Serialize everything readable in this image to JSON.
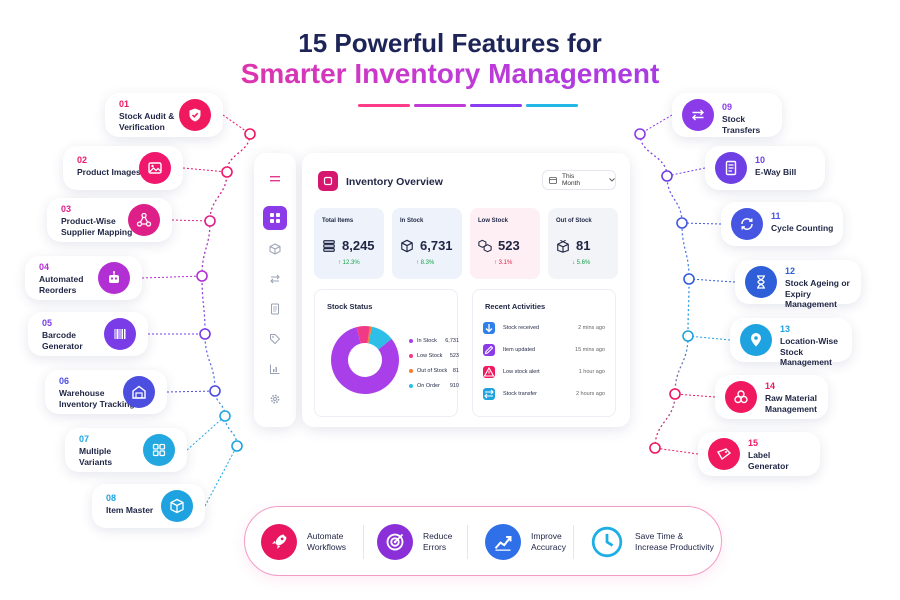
{
  "title": {
    "line1": "15 Powerful Features for",
    "line2": "Smarter Inventory Management",
    "underline_colors": [
      "#ff3c87",
      "#c13bd6",
      "#8a3cf0",
      "#22b7e6"
    ]
  },
  "features_left": [
    {
      "num": "01",
      "label": "Stock Audit &\nVerification",
      "icon": "shield-check-icon",
      "color": "#f0185e"
    },
    {
      "num": "02",
      "label": "Product Images",
      "icon": "image-icon",
      "color": "#f0186c"
    },
    {
      "num": "03",
      "label": "Product-Wise\nSupplier Mapping",
      "icon": "nodes-icon",
      "color": "#de1f88"
    },
    {
      "num": "04",
      "label": "Automated\nReorders",
      "icon": "robot-icon",
      "color": "#b22fd4"
    },
    {
      "num": "05",
      "label": "Barcode\nGenerator",
      "icon": "barcode-icon",
      "color": "#7a3ce6"
    },
    {
      "num": "06",
      "label": "Warehouse\nInventory Tracking",
      "icon": "warehouse-icon",
      "color": "#4c4ee0"
    },
    {
      "num": "07",
      "label": "Multiple\nVariants",
      "icon": "grid-icon",
      "color": "#22a7e0"
    },
    {
      "num": "08",
      "label": "Item Master",
      "icon": "box-icon",
      "color": "#1ea3e0"
    }
  ],
  "features_right": [
    {
      "num": "09",
      "label": "Stock Transfers",
      "icon": "transfer-icon",
      "color": "#8b3be8"
    },
    {
      "num": "10",
      "label": "E-Way Bill",
      "icon": "document-icon",
      "color": "#6f3fe6"
    },
    {
      "num": "11",
      "label": "Cycle Counting",
      "icon": "cycle-icon",
      "color": "#4656e2"
    },
    {
      "num": "12",
      "label": "Stock Ageing or\nExpiry Management",
      "icon": "hourglass-icon",
      "color": "#2f5fd8"
    },
    {
      "num": "13",
      "label": "Location-Wise\nStock Management",
      "icon": "location-pin-icon",
      "color": "#1ea3e0"
    },
    {
      "num": "14",
      "label": "Raw Material\nManagement",
      "icon": "materials-icon",
      "color": "#f0185e"
    },
    {
      "num": "15",
      "label": "Label\nGenerator",
      "icon": "label-icon",
      "color": "#f0185e"
    }
  ],
  "dashboard": {
    "title": "Inventory Overview",
    "period": "This Month",
    "stats": [
      {
        "label": "Total Items",
        "value": "8,245",
        "change": "↑ 12.3%",
        "bg": "#eef3fb",
        "change_color": "#16a34a",
        "icon": "stack-icon"
      },
      {
        "label": "In Stock",
        "value": "6,731",
        "change": "↑ 8.3%",
        "bg": "#eef3fb",
        "change_color": "#16a34a",
        "icon": "box-icon"
      },
      {
        "label": "Low Stock",
        "value": "523",
        "change": "↑ 3.1%",
        "bg": "#fdeff3",
        "change_color": "#e11d48",
        "icon": "boxes-icon"
      },
      {
        "label": "Out of Stock",
        "value": "81",
        "change": "↓ 5.6%",
        "bg": "#f3f4f8",
        "change_color": "#16a34a",
        "icon": "empty-box-icon"
      }
    ],
    "stock_status": {
      "title": "Stock Status",
      "chart_data": {
        "type": "pie",
        "categories": [
          "In Stock",
          "Low Stock",
          "Out of Stock",
          "On Order"
        ],
        "values": [
          6731,
          523,
          81,
          910
        ],
        "colors": [
          "#a93fe8",
          "#f03a86",
          "#ff7a2e",
          "#2ebfe9"
        ],
        "legend_labels": [
          "In Stock",
          "Low Stock",
          "Out of Stock",
          "On Order"
        ],
        "legend_values": [
          "6,731",
          "523",
          "81",
          "910"
        ]
      }
    },
    "activities": {
      "title": "Recent Activities",
      "items": [
        {
          "label": "Stock received",
          "time": "2 mins ago",
          "color": "#2f7fe8",
          "icon": "arrow-down-icon"
        },
        {
          "label": "Item updated",
          "time": "15 mins ago",
          "color": "#8b3be8",
          "icon": "edit-icon"
        },
        {
          "label": "Low stock alert",
          "time": "1 hour ago",
          "color": "#f0185e",
          "icon": "alert-icon"
        },
        {
          "label": "Stock transfer",
          "time": "2 hours ago",
          "color": "#1ea3e0",
          "icon": "transfer-icon"
        }
      ]
    }
  },
  "benefits": [
    {
      "label": "Automate\nWorkflows",
      "color": "#e8155f",
      "icon": "rocket-icon"
    },
    {
      "label": "Reduce\nErrors",
      "color": "#8b2fd8",
      "icon": "target-icon"
    },
    {
      "label": "Improve\nAccuracy",
      "color": "#2f6fe8",
      "icon": "trend-up-icon"
    },
    {
      "label": "Save Time &\nIncrease Productivity",
      "color": "#1eaee6",
      "icon": "clock-icon"
    }
  ]
}
